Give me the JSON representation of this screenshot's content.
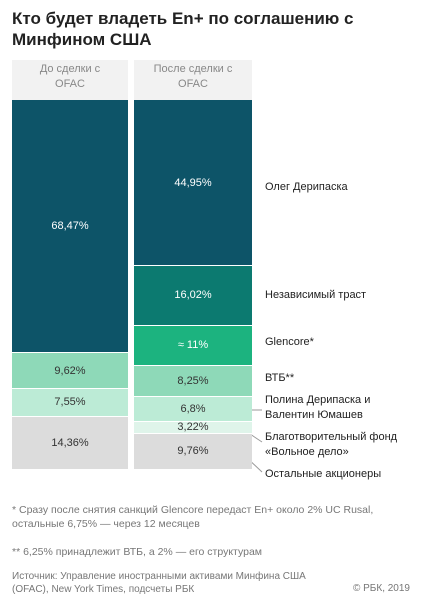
{
  "chart_data": {
    "type": "stacked_column",
    "title": "Кто будет владеть En+ по соглашению с Минфином США",
    "categories": [
      "До сделки с OFAC",
      "После сделки с OFAC"
    ],
    "series": [
      {
        "name": "Олег Дерипаска",
        "color": "#0d5468",
        "values": [
          68.47,
          44.95
        ],
        "value_labels": [
          "68,47%",
          "44,95%"
        ]
      },
      {
        "name": "Независимый траст",
        "color": "#0c7a70",
        "values": [
          null,
          16.02
        ],
        "value_labels": [
          null,
          "16,02%"
        ]
      },
      {
        "name": "Glencore*",
        "color": "#1cb37f",
        "values": [
          null,
          11
        ],
        "value_labels": [
          null,
          "≈ 11%"
        ]
      },
      {
        "name": "ВТБ**",
        "color": "#8ed9b8",
        "values": [
          9.62,
          8.25
        ],
        "value_labels": [
          "9,62%",
          "8,25%"
        ]
      },
      {
        "name": "Полина Дерипаска и Валентин Юмашев",
        "color": "#bcebd6",
        "values": [
          7.55,
          6.8
        ],
        "value_labels": [
          "7,55%",
          "6,8%"
        ]
      },
      {
        "name": "Благотворительный фонд «Вольное дело»",
        "color": "#dff4ea",
        "values": [
          null,
          3.22
        ],
        "value_labels": [
          null,
          "3,22%"
        ]
      },
      {
        "name": "Остальные акционеры",
        "color": "#dcdcdc",
        "values": [
          14.36,
          9.76
        ],
        "value_labels": [
          "14,36%",
          "9,76%"
        ]
      }
    ],
    "notes": [
      "* Сразу после снятия санкций Glencore передаст En+ около 2% UC Rusal, остальные 6,75% — через 12 месяцев",
      "** 6,25% принадлежит ВТБ, а 2% — его структурам"
    ],
    "source": "Источник: Управление иностранными активами Минфина США (OFAC),  New York Times, подсчеты РБК",
    "copyright": "© РБК, 2019"
  }
}
